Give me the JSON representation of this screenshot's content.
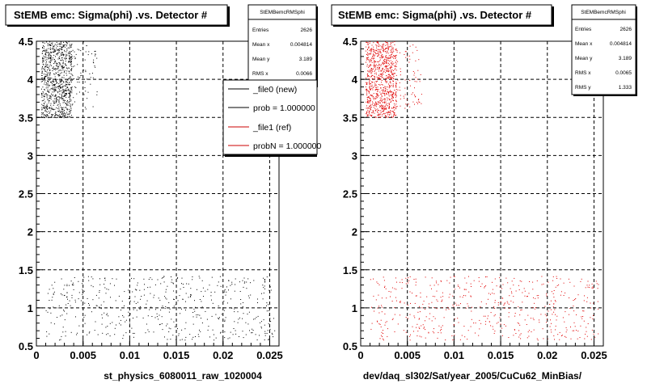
{
  "chart_data": [
    {
      "type": "scatter",
      "title": "StEMB emc: Sigma(phi) .vs. Detector #",
      "xlabel": "st_physics_6080011_raw_1020004",
      "ylabel": "",
      "xlim": [
        0,
        0.026
      ],
      "ylim": [
        0.5,
        4.5
      ],
      "x_ticks": [
        "0",
        "0.005",
        "0.01",
        "0.015",
        "0.02",
        "0.025"
      ],
      "y_ticks": [
        "0.5",
        "1",
        "1.5",
        "2",
        "2.5",
        "3",
        "3.5",
        "4",
        "4.5"
      ],
      "grid": true,
      "marker_color": "#000000",
      "clusters": [
        {
          "x_range": [
            0.0005,
            0.0038
          ],
          "y_range": [
            3.5,
            4.5
          ],
          "density": "high"
        },
        {
          "x_range": [
            0.0038,
            0.0065
          ],
          "y_range": [
            3.6,
            4.5
          ],
          "density": "low"
        },
        {
          "x_range": [
            0.001,
            0.0255
          ],
          "y_range": [
            0.58,
            1.42
          ],
          "density": "low"
        }
      ],
      "stats": {
        "name": "StEMBemcRMSphi",
        "rows": [
          {
            "label": "Entries",
            "value": "2626"
          },
          {
            "label": "Mean x",
            "value": "0.004814"
          },
          {
            "label": "Mean y",
            "value": "3.189"
          },
          {
            "label": "RMS x",
            "value": "0.0066"
          }
        ]
      },
      "legend": [
        {
          "label": "_file0 (new)",
          "color": "#000000"
        },
        {
          "label": "prob = 1.000000",
          "color": "#000000"
        },
        {
          "label": "_file1 (ref)",
          "color": "#cc0000"
        },
        {
          "label": "probN = 1.000000",
          "color": "#cc0000"
        }
      ]
    },
    {
      "type": "scatter",
      "title": "StEMB emc: Sigma(phi) .vs. Detector #",
      "xlabel": "dev/daq_sl302/Sat/year_2005/CuCu62_MinBias/",
      "ylabel": "",
      "xlim": [
        0,
        0.026
      ],
      "ylim": [
        0.5,
        4.5
      ],
      "x_ticks": [
        "0",
        "0.005",
        "0.01",
        "0.015",
        "0.02",
        "0.025"
      ],
      "y_ticks": [
        "0.5",
        "1",
        "1.5",
        "2",
        "2.5",
        "3",
        "3.5",
        "4",
        "4.5"
      ],
      "grid": true,
      "marker_color": "#e00000",
      "clusters": [
        {
          "x_range": [
            0.0005,
            0.0038
          ],
          "y_range": [
            3.5,
            4.5
          ],
          "density": "high"
        },
        {
          "x_range": [
            0.0038,
            0.0065
          ],
          "y_range": [
            3.6,
            4.5
          ],
          "density": "low"
        },
        {
          "x_range": [
            0.001,
            0.0255
          ],
          "y_range": [
            0.58,
            1.42
          ],
          "density": "low"
        }
      ],
      "stats": {
        "name": "StEMBemcRMSphi",
        "rows": [
          {
            "label": "Entries",
            "value": "2626"
          },
          {
            "label": "Mean x",
            "value": "0.004814"
          },
          {
            "label": "Mean y",
            "value": "3.189"
          },
          {
            "label": "RMS x",
            "value": "0.0065"
          },
          {
            "label": "RMS y",
            "value": "1.333"
          }
        ]
      }
    }
  ]
}
